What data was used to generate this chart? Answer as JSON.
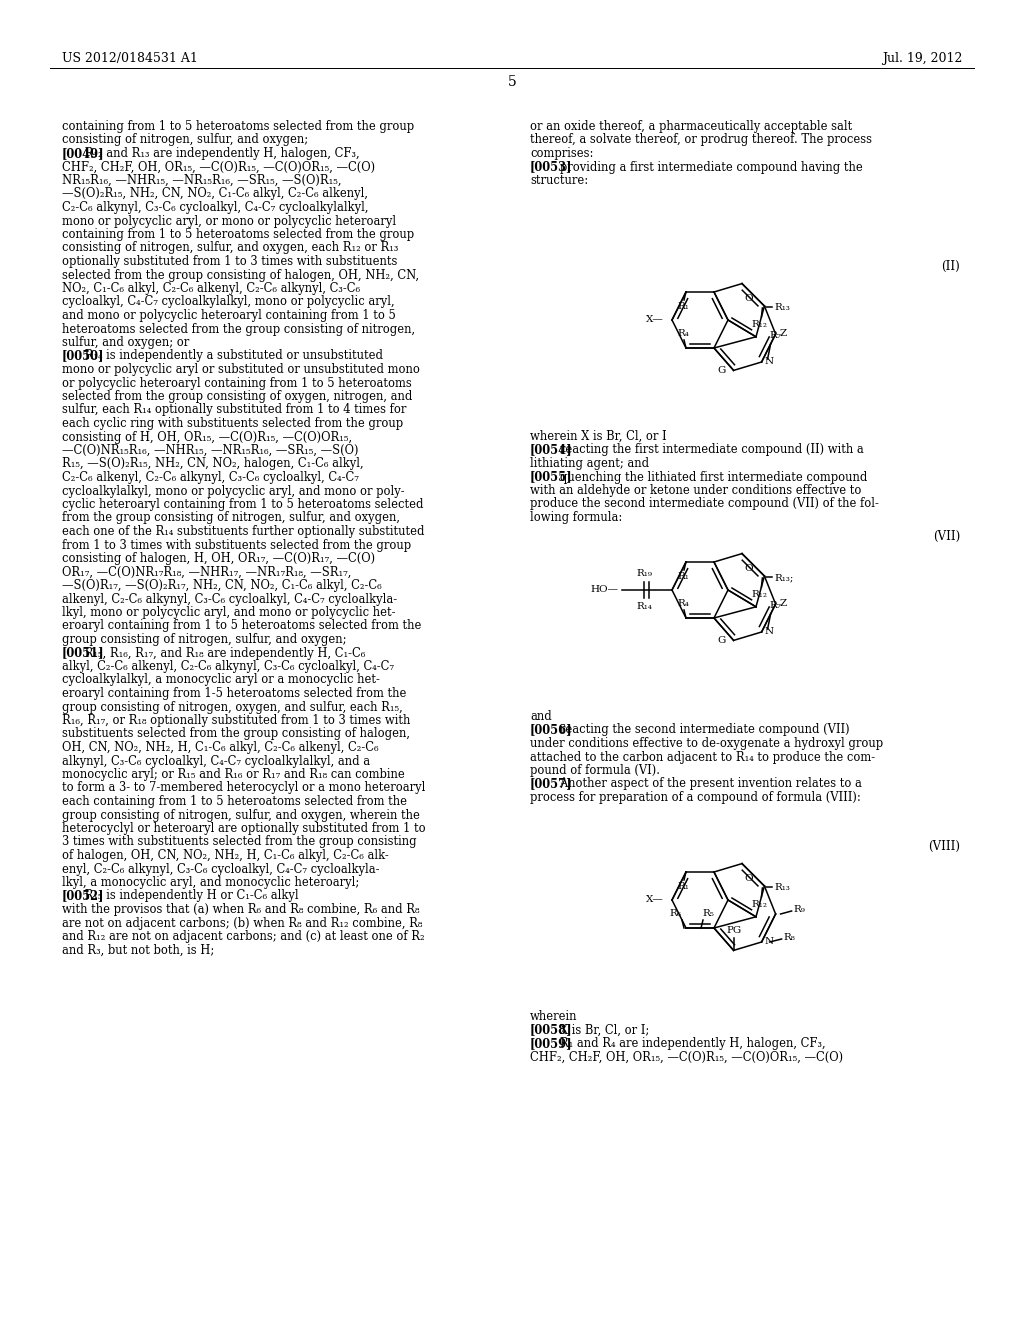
{
  "header_left": "US 2012/0184531 A1",
  "header_right": "Jul. 19, 2012",
  "page_number": "5",
  "background_color": "#ffffff",
  "left_col_lines": [
    "containing from 1 to 5 heteroatoms selected from the group",
    "consisting of nitrogen, sulfur, and oxygen;",
    "[0049]_BOLD R₁₂ and R₁₃ are independently H, halogen, CF₃,",
    "CHF₂, CH₂F, OH, OR₁₅, —C(O)R₁₅, —C(O)OR₁₅, —C(O)",
    "NR₁₅R₁₆, —NHR₁₅, —NR₁₅R₁₆, —SR₁₅, —S(O)R₁₅,",
    "—S(O)₂R₁₅, NH₂, CN, NO₂, C₁-C₆ alkyl, C₂-C₆ alkenyl,",
    "C₂-C₆ alkynyl, C₃-C₆ cycloalkyl, C₄-C₇ cycloalkylalkyl,",
    "mono or polycyclic aryl, or mono or polycyclic heteroaryl",
    "containing from 1 to 5 heteroatoms selected from the group",
    "consisting of nitrogen, sulfur, and oxygen, each R₁₂ or R₁₃",
    "optionally substituted from 1 to 3 times with substituents",
    "selected from the group consisting of halogen, OH, NH₂, CN,",
    "NO₂, C₁-C₆ alkyl, C₂-C₆ alkenyl, C₂-C₆ alkynyl, C₃-C₆",
    "cycloalkyl, C₄-C₇ cycloalkylalkyl, mono or polycyclic aryl,",
    "and mono or polycyclic heteroaryl containing from 1 to 5",
    "heteroatoms selected from the group consisting of nitrogen,",
    "sulfur, and oxygen; or",
    "[0050]_BOLD R₁₄ is independently a substituted or unsubstituted",
    "mono or polycyclic aryl or substituted or unsubstituted mono",
    "or polycyclic heteroaryl containing from 1 to 5 heteroatoms",
    "selected from the group consisting of oxygen, nitrogen, and",
    "sulfur, each R₁₄ optionally substituted from 1 to 4 times for",
    "each cyclic ring with substituents selected from the group",
    "consisting of H, OH, OR₁₅, —C(O)R₁₅, —C(O)OR₁₅,",
    "—C(O)NR₁₅R₁₆, —NHR₁₅, —NR₁₅R₁₆, —SR₁₅, —S(O)",
    "R₁₅, —S(O)₂R₁₅, NH₂, CN, NO₂, halogen, C₁-C₆ alkyl,",
    "C₂-C₆ alkenyl, C₂-C₆ alkynyl, C₃-C₆ cycloalkyl, C₄-C₇",
    "cycloalkylalkyl, mono or polycyclic aryl, and mono or poly-",
    "cyclic heteroaryl containing from 1 to 5 heteroatoms selected",
    "from the group consisting of nitrogen, sulfur, and oxygen,",
    "each one of the R₁₄ substituents further optionally substituted",
    "from 1 to 3 times with substituents selected from the group",
    "consisting of halogen, H, OH, OR₁₇, —C(O)R₁₇, —C(O)",
    "OR₁₇, —C(O)NR₁₇R₁₈, —NHR₁₇, —NR₁₇R₁₈, —SR₁₇,",
    "—S(O)R₁₇, —S(O)₂R₁₇, NH₂, CN, NO₂, C₁-C₆ alkyl, C₂-C₆",
    "alkenyl, C₂-C₆ alkynyl, C₃-C₆ cycloalkyl, C₄-C₇ cycloalkyla-",
    "lkyl, mono or polycyclic aryl, and mono or polycyclic het-",
    "eroaryl containing from 1 to 5 heteroatoms selected from the",
    "group consisting of nitrogen, sulfur, and oxygen;",
    "[0051]_BOLD R₁₅, R₁₆, R₁₇, and R₁₈ are independently H, C₁-C₆",
    "alkyl, C₂-C₆ alkenyl, C₂-C₆ alkynyl, C₃-C₆ cycloalkyl, C₄-C₇",
    "cycloalkylalkyl, a monocyclic aryl or a monocyclic het-",
    "eroaryl containing from 1-5 heteroatoms selected from the",
    "group consisting of nitrogen, oxygen, and sulfur, each R₁₅,",
    "R₁₆, R₁₇, or R₁₈ optionally substituted from 1 to 3 times with",
    "substituents selected from the group consisting of halogen,",
    "OH, CN, NO₂, NH₂, H, C₁-C₆ alkyl, C₂-C₆ alkenyl, C₂-C₆",
    "alkynyl, C₃-C₆ cycloalkyl, C₄-C₇ cycloalkylalkyl, and a",
    "monocyclic aryl; or R₁₅ and R₁₆ or R₁₇ and R₁₈ can combine",
    "to form a 3- to 7-membered heterocyclyl or a mono heteroaryl",
    "each containing from 1 to 5 heteroatoms selected from the",
    "group consisting of nitrogen, sulfur, and oxygen, wherein the",
    "heterocyclyl or heteroaryl are optionally substituted from 1 to",
    "3 times with substituents selected from the group consisting",
    "of halogen, OH, CN, NO₂, NH₂, H, C₁-C₆ alkyl, C₂-C₆ alk-",
    "enyl, C₂-C₆ alkynyl, C₃-C₆ cycloalkyl, C₄-C₇ cycloalkyla-",
    "lkyl, a monocyclic aryl, and monocyclic heteroaryl;",
    "[0052]_BOLD R₁₅ is independently H or C₁-C₆ alkyl",
    "with the provisos that (a) when R₆ and R₈ combine, R₆ and R₈",
    "are not on adjacent carbons; (b) when R₈ and R₁₂ combine, R₈",
    "and R₁₂ are not on adjacent carbons; and (c) at least one of R₂",
    "and R₃, but not both, is H;"
  ],
  "right_col_lines_top": [
    "or an oxide thereof, a pharmaceutically acceptable salt",
    "thereof, a solvate thereof, or prodrug thereof. The process",
    "comprises:",
    "[0053]_BOLD   providing a first intermediate compound having the",
    "structure:"
  ],
  "right_col_lines_mid": [
    "wherein X is Br, Cl, or I",
    "[0054]_BOLD   reacting the first intermediate compound (II) with a",
    "lithiating agent; and",
    "[0055]_BOLD   quenching the lithiated first intermediate compound",
    "with an aldehyde or ketone under conditions effective to",
    "produce the second intermediate compound (VII) of the fol-",
    "lowing formula:"
  ],
  "right_col_lines_after_vii": [
    "and",
    "[0056]_BOLD   reacting the second intermediate compound (VII)",
    "under conditions effective to de-oxygenate a hydroxyl group",
    "attached to the carbon adjacent to R₁₄ to produce the com-",
    "pound of formula (VI).",
    "[0057]_BOLD   Another aspect of the present invention relates to a",
    "process for preparation of a compound of formula (VIII):"
  ],
  "right_col_lines_bottom": [
    "wherein",
    "[0058]_BOLD   X is Br, Cl, or I;",
    "[0059]_BOLD   R₁ and R₄ are independently H, halogen, CF₃,",
    "CHF₂, CH₂F, OH, OR₁₅, —C(O)R₁₅, —C(O)OR₁₅, —C(O)"
  ]
}
